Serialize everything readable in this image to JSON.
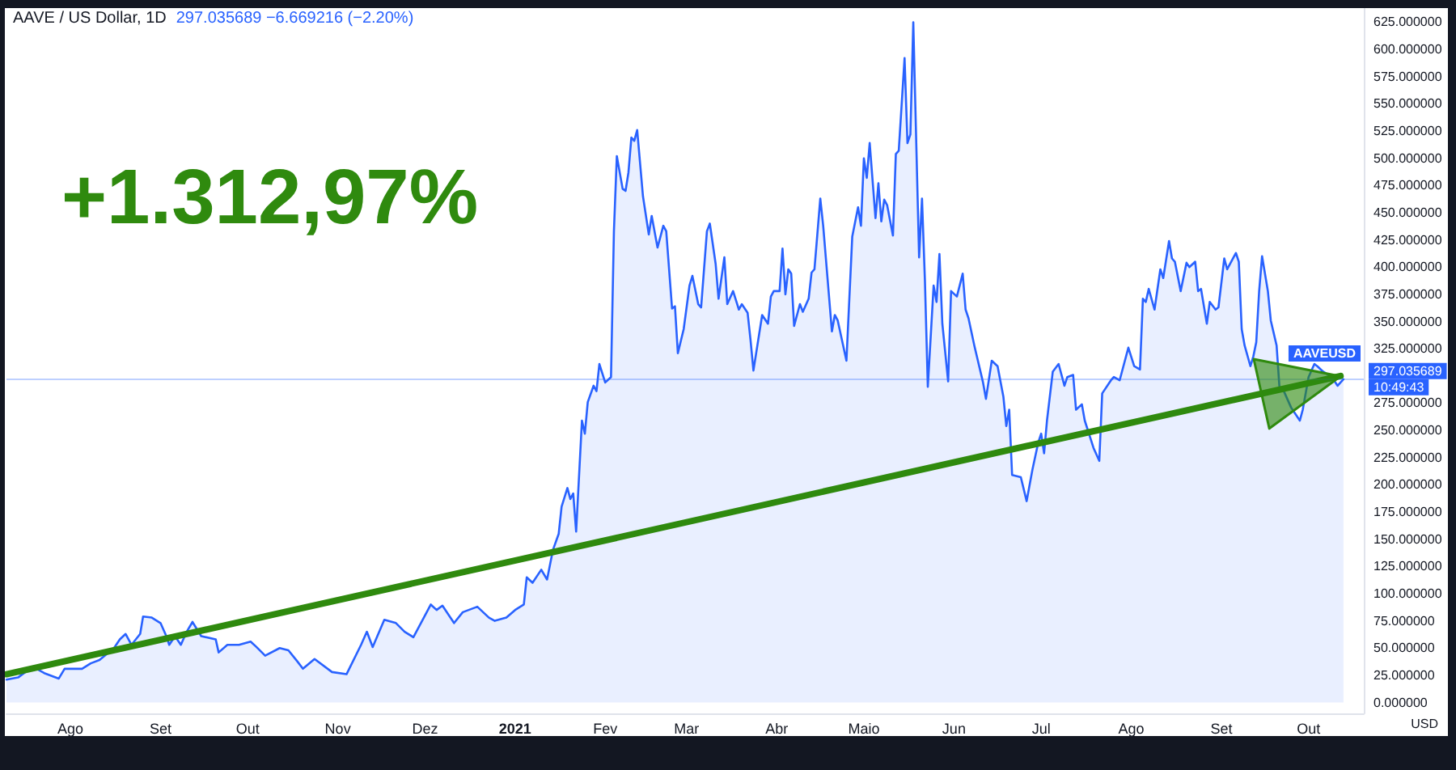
{
  "chart_data": {
    "type": "area",
    "title": "AAVE / US Dollar, 1D",
    "subtitle": "297.035689 −6.669216 (−2.20%)",
    "ylabel": "USD",
    "annotations": [
      "+1.312,97%",
      {
        "text": "10:49:43",
        "x": "2021-10-20",
        "y": 297.035689
      }
    ],
    "xlim": [
      "2020-07-10",
      "2021-10-20"
    ],
    "xticks": [
      {
        "value": "2020-08-01",
        "label": "Ago"
      },
      {
        "value": "2020-09-01",
        "label": "Set"
      },
      {
        "value": "2020-10-01",
        "label": "Out"
      },
      {
        "value": "2020-11-01",
        "label": "Nov"
      },
      {
        "value": "2020-12-01",
        "label": "Dez"
      },
      {
        "value": "2021-01-01",
        "label": "2021"
      },
      {
        "value": "2021-02-01",
        "label": "Fev"
      },
      {
        "value": "2021-03-01",
        "label": "Mar"
      },
      {
        "value": "2021-04-01",
        "label": "Abr"
      },
      {
        "value": "2021-05-01",
        "label": "Maio"
      },
      {
        "value": "2021-06-01",
        "label": "Jun"
      },
      {
        "value": "2021-07-01",
        "label": "Jul"
      },
      {
        "value": "2021-08-01",
        "label": "Ago"
      },
      {
        "value": "2021-09-01",
        "label": "Set"
      },
      {
        "value": "2021-10-01",
        "label": "Out"
      }
    ],
    "ylim": [
      -10,
      638
    ],
    "yticks": [
      {
        "value": 0,
        "label": "0.000000"
      },
      {
        "value": 25,
        "label": "25.000000"
      },
      {
        "value": 50,
        "label": "50.000000"
      },
      {
        "value": 75,
        "label": "75.000000"
      },
      {
        "value": 100,
        "label": "100.000000"
      },
      {
        "value": 125,
        "label": "125.000000"
      },
      {
        "value": 150,
        "label": "150.000000"
      },
      {
        "value": 175,
        "label": "175.000000"
      },
      {
        "value": 200,
        "label": "200.000000"
      },
      {
        "value": 225,
        "label": "225.000000"
      },
      {
        "value": 250,
        "label": "250.000000"
      },
      {
        "value": 275,
        "label": "275.000000"
      },
      {
        "value": 325,
        "label": "325.000000"
      },
      {
        "value": 350,
        "label": "350.000000"
      },
      {
        "value": 375,
        "label": "375.000000"
      },
      {
        "value": 400,
        "label": "400.000000"
      },
      {
        "value": 425,
        "label": "425.000000"
      },
      {
        "value": 450,
        "label": "450.000000"
      },
      {
        "value": 475,
        "label": "475.000000"
      },
      {
        "value": 500,
        "label": "500.000000"
      },
      {
        "value": 525,
        "label": "525.000000"
      },
      {
        "value": 550,
        "label": "550.000000"
      },
      {
        "value": 575,
        "label": "575.000000"
      },
      {
        "value": 600,
        "label": "600.000000"
      },
      {
        "value": 625,
        "label": "625.000000"
      }
    ],
    "ref_lines": [
      {
        "axis": "y",
        "value": 297.035689,
        "label": "297.035689",
        "color": "#2962ff"
      }
    ],
    "series": [
      {
        "name": "AAVEUSD",
        "color": "#2962ff",
        "x": [
          "2020-07-10",
          "2020-07-14",
          "2020-07-19",
          "2020-07-23",
          "2020-07-28",
          "2020-07-30",
          "2020-08-05",
          "2020-08-08",
          "2020-08-11",
          "2020-08-16",
          "2020-08-18",
          "2020-08-20",
          "2020-08-22",
          "2020-08-25",
          "2020-08-26",
          "2020-08-29",
          "2020-09-01",
          "2020-09-03",
          "2020-09-04",
          "2020-09-06",
          "2020-09-08",
          "2020-09-10",
          "2020-09-12",
          "2020-09-15",
          "2020-09-20",
          "2020-09-21",
          "2020-09-24",
          "2020-09-28",
          "2020-10-02",
          "2020-10-04",
          "2020-10-07",
          "2020-10-12",
          "2020-10-15",
          "2020-10-18",
          "2020-10-20",
          "2020-10-24",
          "2020-10-30",
          "2020-11-04",
          "2020-11-09",
          "2020-11-11",
          "2020-11-13",
          "2020-11-17",
          "2020-11-21",
          "2020-11-24",
          "2020-11-27",
          "2020-12-03",
          "2020-12-05",
          "2020-12-07",
          "2020-12-11",
          "2020-12-14",
          "2020-12-19",
          "2020-12-23",
          "2020-12-25",
          "2020-12-29",
          "2021-01-01",
          "2021-01-04",
          "2021-01-05",
          "2021-01-07",
          "2021-01-10",
          "2021-01-12",
          "2021-01-14",
          "2021-01-16",
          "2021-01-17",
          "2021-01-19",
          "2021-01-20",
          "2021-01-21",
          "2021-01-22",
          "2021-01-24",
          "2021-01-25",
          "2021-01-26",
          "2021-01-28",
          "2021-01-29",
          "2021-01-30",
          "2021-02-01",
          "2021-02-03",
          "2021-02-04",
          "2021-02-05",
          "2021-02-07",
          "2021-02-08",
          "2021-02-09",
          "2021-02-10",
          "2021-02-11",
          "2021-02-12",
          "2021-02-14",
          "2021-02-16",
          "2021-02-17",
          "2021-02-19",
          "2021-02-21",
          "2021-02-22",
          "2021-02-24",
          "2021-02-25",
          "2021-02-26",
          "2021-02-28",
          "2021-03-02",
          "2021-03-03",
          "2021-03-05",
          "2021-03-06",
          "2021-03-08",
          "2021-03-09",
          "2021-03-11",
          "2021-03-12",
          "2021-03-14",
          "2021-03-15",
          "2021-03-17",
          "2021-03-19",
          "2021-03-20",
          "2021-03-22",
          "2021-03-23",
          "2021-03-24",
          "2021-03-27",
          "2021-03-29",
          "2021-03-30",
          "2021-03-31",
          "2021-04-02",
          "2021-04-03",
          "2021-04-04",
          "2021-04-05",
          "2021-04-06",
          "2021-04-07",
          "2021-04-09",
          "2021-04-10",
          "2021-04-12",
          "2021-04-13",
          "2021-04-14",
          "2021-04-16",
          "2021-04-17",
          "2021-04-20",
          "2021-04-21",
          "2021-04-22",
          "2021-04-25",
          "2021-04-27",
          "2021-04-29",
          "2021-04-30",
          "2021-05-01",
          "2021-05-02",
          "2021-05-03",
          "2021-05-05",
          "2021-05-06",
          "2021-05-07",
          "2021-05-08",
          "2021-05-09",
          "2021-05-11",
          "2021-05-12",
          "2021-05-13",
          "2021-05-15",
          "2021-05-16",
          "2021-05-17",
          "2021-05-18",
          "2021-05-20",
          "2021-05-21",
          "2021-05-22",
          "2021-05-23",
          "2021-05-25",
          "2021-05-26",
          "2021-05-27",
          "2021-05-28",
          "2021-05-30",
          "2021-05-31",
          "2021-06-02",
          "2021-06-04",
          "2021-06-05",
          "2021-06-06",
          "2021-06-08",
          "2021-06-11",
          "2021-06-12",
          "2021-06-14",
          "2021-06-16",
          "2021-06-18",
          "2021-06-19",
          "2021-06-20",
          "2021-06-21",
          "2021-06-24",
          "2021-06-26",
          "2021-06-28",
          "2021-06-30",
          "2021-07-01",
          "2021-07-02",
          "2021-07-03",
          "2021-07-05",
          "2021-07-07",
          "2021-07-09",
          "2021-07-10",
          "2021-07-12",
          "2021-07-13",
          "2021-07-15",
          "2021-07-16",
          "2021-07-19",
          "2021-07-21",
          "2021-07-22",
          "2021-07-25",
          "2021-07-26",
          "2021-07-28",
          "2021-07-31",
          "2021-08-02",
          "2021-08-04",
          "2021-08-05",
          "2021-08-06",
          "2021-08-07",
          "2021-08-09",
          "2021-08-11",
          "2021-08-12",
          "2021-08-14",
          "2021-08-15",
          "2021-08-16",
          "2021-08-18",
          "2021-08-20",
          "2021-08-21",
          "2021-08-23",
          "2021-08-24",
          "2021-08-25",
          "2021-08-27",
          "2021-08-28",
          "2021-08-30",
          "2021-08-31",
          "2021-09-02",
          "2021-09-03",
          "2021-09-06",
          "2021-09-07",
          "2021-09-08",
          "2021-09-09",
          "2021-09-11",
          "2021-09-12",
          "2021-09-13",
          "2021-09-14",
          "2021-09-15",
          "2021-09-17",
          "2021-09-18",
          "2021-09-20",
          "2021-09-21",
          "2021-09-22",
          "2021-09-25",
          "2021-09-28",
          "2021-09-29",
          "2021-10-01",
          "2021-10-03",
          "2021-10-04",
          "2021-10-06",
          "2021-10-09",
          "2021-10-11",
          "2021-10-13"
        ],
        "values": [
          21,
          23,
          33,
          27,
          22,
          31,
          31,
          36,
          39,
          50,
          58,
          63,
          53,
          63,
          79,
          78,
          73,
          61,
          53,
          61,
          53,
          65,
          74,
          61,
          58,
          46,
          53,
          53,
          56,
          51,
          43,
          50,
          48,
          38,
          31,
          40,
          28,
          26,
          53,
          65,
          51,
          76,
          73,
          65,
          60,
          90,
          85,
          89,
          73,
          83,
          88,
          78,
          75,
          78,
          85,
          90,
          115,
          110,
          122,
          113,
          140,
          155,
          180,
          197,
          187,
          192,
          157,
          259,
          247,
          276,
          291,
          286,
          311,
          294,
          299,
          433,
          502,
          472,
          470,
          487,
          519,
          516,
          526,
          465,
          430,
          447,
          418,
          438,
          433,
          362,
          364,
          321,
          343,
          383,
          392,
          366,
          363,
          433,
          440,
          403,
          371,
          409,
          366,
          378,
          361,
          366,
          358,
          333,
          305,
          356,
          348,
          373,
          378,
          378,
          417,
          375,
          398,
          394,
          346,
          366,
          359,
          371,
          395,
          398,
          463,
          438,
          341,
          356,
          351,
          314,
          428,
          455,
          438,
          500,
          482,
          514,
          445,
          477,
          442,
          462,
          457,
          429,
          504,
          507,
          592,
          514,
          522,
          625,
          409,
          463,
          388,
          290,
          383,
          368,
          412,
          348,
          295,
          378,
          373,
          394,
          361,
          353,
          328,
          294,
          279,
          314,
          309,
          281,
          254,
          269,
          209,
          207,
          185,
          214,
          239,
          247,
          229,
          259,
          304,
          311,
          291,
          299,
          301,
          269,
          274,
          259,
          234,
          222,
          284,
          296,
          299,
          296,
          326,
          309,
          306,
          371,
          368,
          380,
          361,
          398,
          390,
          424,
          408,
          405,
          378,
          404,
          400,
          405,
          378,
          380,
          348,
          368,
          361,
          363,
          408,
          398,
          413,
          405,
          343,
          328,
          309,
          318,
          331,
          378,
          410,
          378,
          351,
          328,
          289,
          289,
          271,
          259,
          269,
          299,
          311,
          309,
          304,
          299,
          291,
          297
        ]
      },
      {
        "type": "line",
        "color": "#2f8a0e",
        "x": [
          "2020-07-10",
          "2021-10-12"
        ],
        "values": [
          26,
          300
        ]
      }
    ]
  }
}
